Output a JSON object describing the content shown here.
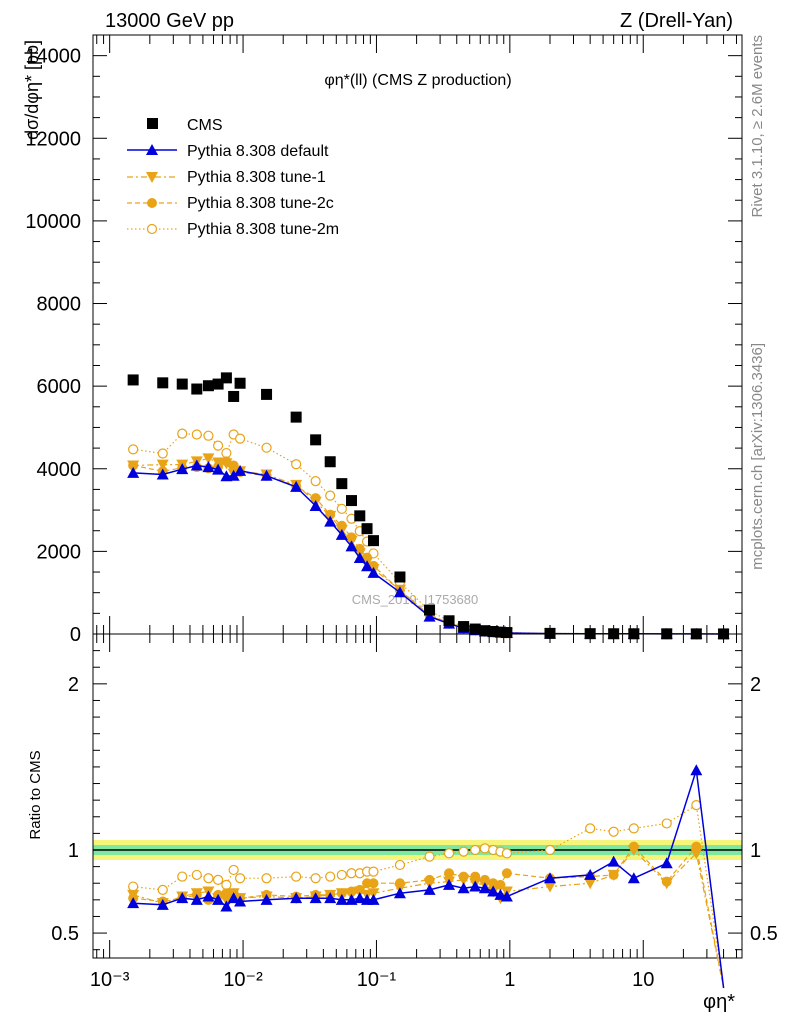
{
  "header": {
    "left": "13000 GeV pp",
    "right": "Z (Drell-Yan)"
  },
  "side_labels": {
    "rivet": "Rivet 3.1.10, ≥ 2.6M events",
    "mcplots": "mcplots.cern.ch [arXiv:1306.3436]"
  },
  "watermark": "CMS_2019_I1753680",
  "plot_title": "φη*(ll) (CMS Z production)",
  "ylabel_main": "dσ/dφη* [pb]",
  "ylabel_ratio": "Ratio to CMS",
  "xlabel": "φη*",
  "colors": {
    "cms": "#000000",
    "default": "#0000dd",
    "tune": "#e8a317",
    "band_yellow": "#f5f57a",
    "band_green": "#7ee8a0"
  },
  "chart_data": [
    {
      "type": "scatter",
      "panel": "main",
      "xscale": "log",
      "xlim": [
        0.00075,
        55
      ],
      "ylim": [
        0,
        14500
      ],
      "yticks": [
        0,
        2000,
        4000,
        6000,
        8000,
        10000,
        12000,
        14000
      ],
      "ytick_labels": [
        "0",
        "2000",
        "4000",
        "6000",
        "8000",
        "10000",
        "12000",
        "14000"
      ],
      "xticks": [
        0.001,
        0.01,
        0.1,
        1,
        10
      ],
      "xtick_labels": [
        "10⁻³",
        "10⁻²",
        "10⁻¹",
        "1",
        "10"
      ],
      "x": [
        0.0015,
        0.0025,
        0.0035,
        0.0045,
        0.0055,
        0.0065,
        0.0075,
        0.0085,
        0.0095,
        0.015,
        0.025,
        0.035,
        0.045,
        0.055,
        0.065,
        0.075,
        0.085,
        0.095,
        0.15,
        0.25,
        0.35,
        0.45,
        0.55,
        0.65,
        0.75,
        0.85,
        0.95,
        2,
        4,
        6,
        8.5,
        15,
        25,
        40
      ],
      "series": [
        {
          "name": "CMS",
          "marker": "square",
          "line": "none",
          "values": [
            6150,
            6080,
            6050,
            5930,
            6010,
            6050,
            6200,
            5750,
            6070,
            5800,
            5250,
            4700,
            4170,
            3640,
            3230,
            2860,
            2550,
            2260,
            1380,
            580,
            320,
            180,
            120,
            80,
            60,
            45,
            35,
            15,
            8,
            6,
            5,
            4,
            3,
            2
          ]
        },
        {
          "name": "Pythia 8.308 default",
          "marker": "triangle-up",
          "line": "solid",
          "values": [
            3900,
            3860,
            3990,
            4080,
            4040,
            3980,
            3820,
            3830,
            3950,
            3830,
            3560,
            3100,
            2720,
            2400,
            2120,
            1840,
            1640,
            1480,
            1010,
            420,
            250,
            140,
            90,
            60,
            45,
            35,
            25,
            10,
            6,
            5,
            4,
            3,
            2,
            1
          ]
        },
        {
          "name": "Pythia 8.308 tune-1",
          "marker": "triangle-down",
          "line": "dashdot",
          "values": [
            4080,
            4100,
            4100,
            4180,
            4250,
            4150,
            4130,
            3880,
            3940,
            3860,
            3610,
            3200,
            2860,
            2520,
            2250,
            1950,
            1740,
            1570,
            1070,
            440,
            260,
            150,
            95,
            62,
            47,
            36,
            26,
            11,
            6,
            5,
            4,
            3,
            2,
            1
          ]
        },
        {
          "name": "Pythia 8.308 tune-2c",
          "marker": "circle",
          "line": "dashed",
          "values": [
            4080,
            3940,
            4020,
            4040,
            4010,
            4050,
            4180,
            4080,
            3920,
            3830,
            3580,
            3290,
            2890,
            2620,
            2340,
            2060,
            1850,
            1650,
            1060,
            460,
            270,
            150,
            100,
            65,
            50,
            38,
            28,
            12,
            7,
            5,
            4,
            3,
            2,
            1
          ]
        },
        {
          "name": "Pythia 8.308 tune-2m",
          "marker": "circle-open",
          "line": "dotted",
          "values": [
            4470,
            4370,
            4850,
            4830,
            4800,
            4560,
            4380,
            4830,
            4730,
            4510,
            4110,
            3700,
            3350,
            3030,
            2790,
            2490,
            2240,
            1950,
            1250,
            560,
            320,
            175,
            120,
            80,
            60,
            45,
            35,
            15,
            9,
            7,
            5,
            4,
            3,
            2
          ]
        }
      ]
    },
    {
      "type": "line",
      "panel": "ratio",
      "xscale": "log",
      "xlim": [
        0.00075,
        55
      ],
      "ylim": [
        0.35,
        2.3
      ],
      "yticks": [
        0.5,
        1,
        2
      ],
      "ytick_labels": [
        "0.5",
        "1",
        "2"
      ],
      "band": {
        "yellow": [
          0.94,
          1.06
        ],
        "green": [
          0.97,
          1.03
        ]
      },
      "x": [
        0.0015,
        0.0025,
        0.0035,
        0.0045,
        0.0055,
        0.0065,
        0.0075,
        0.0085,
        0.0095,
        0.015,
        0.025,
        0.035,
        0.045,
        0.055,
        0.065,
        0.075,
        0.085,
        0.095,
        0.15,
        0.25,
        0.35,
        0.45,
        0.55,
        0.65,
        0.75,
        0.85,
        0.95,
        2,
        4,
        6,
        8.5,
        15,
        25,
        40
      ],
      "series": [
        {
          "name": "Pythia 8.308 default",
          "marker": "triangle-up",
          "line": "solid",
          "values": [
            0.68,
            0.67,
            0.71,
            0.7,
            0.72,
            0.7,
            0.66,
            0.71,
            0.69,
            0.7,
            0.71,
            0.71,
            0.71,
            0.7,
            0.7,
            0.71,
            0.7,
            0.7,
            0.74,
            0.76,
            0.79,
            0.77,
            0.78,
            0.77,
            0.75,
            0.73,
            0.72,
            0.83,
            0.85,
            0.93,
            0.83,
            0.92,
            1.48,
            0.15
          ]
        },
        {
          "name": "Pythia 8.308 tune-1",
          "marker": "triangle-down",
          "line": "dashdot",
          "values": [
            0.73,
            0.68,
            0.72,
            0.74,
            0.75,
            0.71,
            0.7,
            0.74,
            0.71,
            0.72,
            0.71,
            0.72,
            0.73,
            0.74,
            0.73,
            0.75,
            0.73,
            0.74,
            0.77,
            0.8,
            0.81,
            0.82,
            0.8,
            0.79,
            0.75,
            0.71,
            0.75,
            0.78,
            0.8,
            0.85,
            1.0,
            0.8,
            0.98,
            0.15
          ]
        },
        {
          "name": "Pythia 8.308 tune-2c",
          "marker": "circle",
          "line": "dashed",
          "values": [
            0.71,
            0.69,
            0.71,
            0.73,
            0.7,
            0.73,
            0.74,
            0.74,
            0.71,
            0.73,
            0.72,
            0.73,
            0.73,
            0.74,
            0.75,
            0.76,
            0.8,
            0.8,
            0.8,
            0.82,
            0.86,
            0.84,
            0.84,
            0.82,
            0.8,
            0.79,
            0.86,
            0.83,
            0.84,
            0.85,
            1.02,
            0.81,
            1.02,
            0.15
          ]
        },
        {
          "name": "Pythia 8.308 tune-2m",
          "marker": "circle-open",
          "line": "dotted",
          "values": [
            0.78,
            0.76,
            0.84,
            0.85,
            0.83,
            0.82,
            0.79,
            0.88,
            0.83,
            0.83,
            0.84,
            0.83,
            0.84,
            0.85,
            0.86,
            0.86,
            0.87,
            0.87,
            0.91,
            0.96,
            0.98,
            0.99,
            1.0,
            1.01,
            1.0,
            0.99,
            0.98,
            1.0,
            1.13,
            1.11,
            1.13,
            1.16,
            1.27,
            0.15
          ]
        }
      ]
    }
  ]
}
